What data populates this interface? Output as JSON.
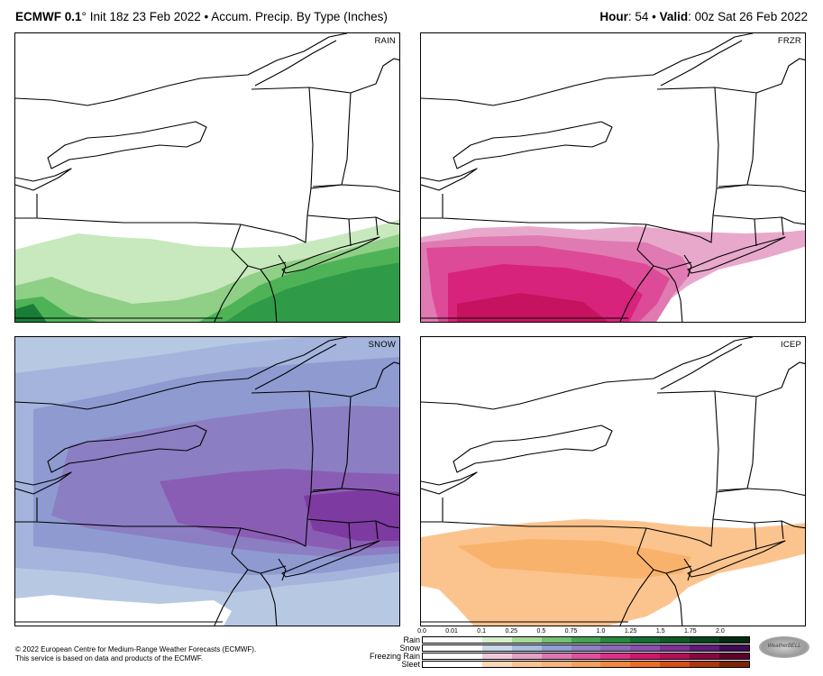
{
  "header": {
    "model": "ECMWF 0.1",
    "degree": "°",
    "init": "Init 18z 23 Feb 2022",
    "bullet": "•",
    "product": "Accum. Precip. By Type (Inches)",
    "hour_label": "Hour",
    "hour_value": ": 54",
    "valid_label": "Valid",
    "valid_value": ": 00z Sat 26 Feb 2022"
  },
  "panels": [
    {
      "id": "rain",
      "label": "RAIN"
    },
    {
      "id": "frzr",
      "label": "FRZR"
    },
    {
      "id": "snow",
      "label": "SNOW"
    },
    {
      "id": "icep",
      "label": "ICEP"
    }
  ],
  "footer": {
    "line1": "© 2022 European Centre for Medium-Range Weather Forecasts (ECMWF).",
    "line2": "This service is based on data and products of the ECMWF."
  },
  "legend": {
    "ticks": [
      "0.0",
      "0.01",
      "0.1",
      "0.25",
      "0.5",
      "0.75",
      "1.0",
      "1.25",
      "1.5",
      "1.75",
      "2.0"
    ],
    "rows": [
      {
        "label": "Rain",
        "colors": [
          "#ffffff",
          "#ffffff",
          "#d5efcc",
          "#a6d99a",
          "#73c174",
          "#45a552",
          "#26893c",
          "#137033",
          "#0c5b27",
          "#07431c",
          "#032b11"
        ]
      },
      {
        "label": "Snow",
        "colors": [
          "#ffffff",
          "#ffffff",
          "#c9d8ea",
          "#a6bde0",
          "#8f9fd4",
          "#8c82c4",
          "#8a69b8",
          "#8a4fac",
          "#7c3197",
          "#5f1b7a",
          "#3e0a55"
        ]
      },
      {
        "label": "Freezing Rain",
        "colors": [
          "#ffffff",
          "#ffffff",
          "#f2c8dc",
          "#e4a0c6",
          "#dd77b0",
          "#e0509c",
          "#dd2f86",
          "#d3146e",
          "#b50d58",
          "#880640",
          "#5e022b"
        ]
      },
      {
        "label": "Sleet",
        "colors": [
          "#ffffff",
          "#ffffff",
          "#fbd8b6",
          "#f9c493",
          "#f7b378",
          "#f5a15c",
          "#f2873f",
          "#ec6b26",
          "#d44e16",
          "#ab380d",
          "#7c2406"
        ]
      }
    ]
  },
  "colors": {
    "rain": [
      "#c8e8bd",
      "#8fcf86",
      "#4db356",
      "#2f9a47",
      "#197d37"
    ],
    "frzr": [
      "#e8a8cc",
      "#e07ab2",
      "#dc4a98",
      "#d8237c",
      "#c6125f"
    ],
    "snow": [
      "#b7c8e3",
      "#a4b4dc",
      "#8f9ad1",
      "#8c7ec3",
      "#8a5db4",
      "#7d3aa0"
    ],
    "icep": [
      "#fbc48e",
      "#f9b26c"
    ]
  }
}
